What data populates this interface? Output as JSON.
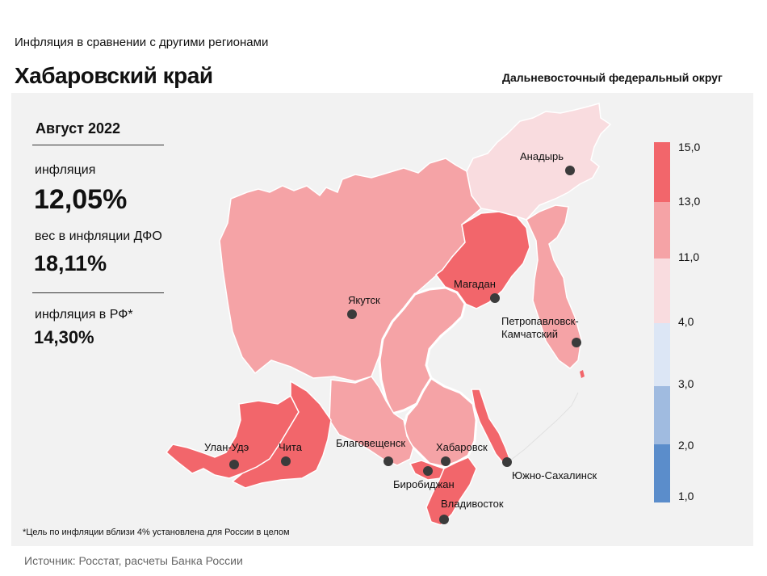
{
  "header": {
    "subtitle": "Инфляция в сравнении с другими регионами",
    "title": "Хабаровский край",
    "district": "Дальневосточный федеральный округ"
  },
  "stats": {
    "period": "Август 2022",
    "inflation_label": "инфляция",
    "inflation_value": "12,05%",
    "weight_label": "вес в инфляции ДФО",
    "weight_value": "18,11%",
    "rf_label": "инфляция в РФ*",
    "rf_value": "14,30%"
  },
  "cities": {
    "anadyr": "Анадырь",
    "magadan": "Магадан",
    "yakutsk": "Якутск",
    "petropavlovsk_1": "Петропавловск-",
    "petropavlovsk_2": "Камчатский",
    "ulan_ude": "Улан-Удэ",
    "chita": "Чита",
    "blagoveshchensk": "Благовещенск",
    "khabarovsk": "Хабаровск",
    "birobidzhan": "Биробиджан",
    "yuzhno": "Южно-Сахалинск",
    "vladivostok": "Владивосток"
  },
  "legend": {
    "ticks": [
      "15,0",
      "13,0",
      "11,0",
      "4,0",
      "3,0",
      "2,0",
      "1,0"
    ],
    "colors": [
      "#f2666b",
      "#f5a3a6",
      "#f9dcdf",
      "#dce6f5",
      "#a0bbe0",
      "#5b8dcb"
    ]
  },
  "footnote": "*Цель по инфляции вблизи 4% установлена для России в целом",
  "source": "Источник: Росстат, расчеты Банка России"
}
